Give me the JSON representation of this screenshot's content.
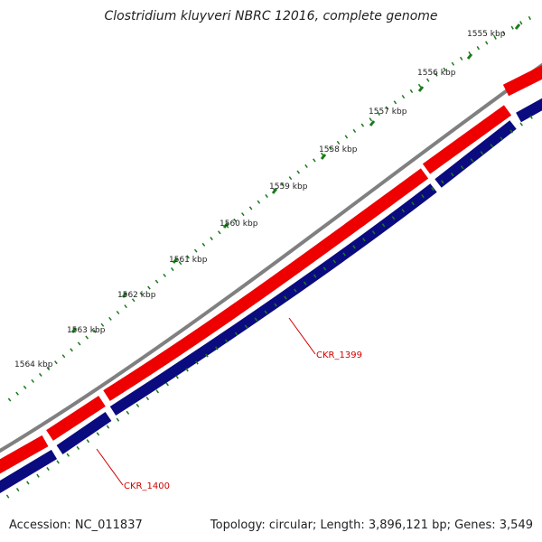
{
  "title": "Clostridium kluyveri NBRC 12016, complete genome",
  "footer": {
    "accession": "Accession: NC_011837",
    "summary": "Topology: circular; Length: 3,896,121 bp; Genes: 3,549"
  },
  "ticks": [
    "1555 kbp",
    "1556 kbp",
    "1557 kbp",
    "1558 kbp",
    "1559 kbp",
    "1560 kbp",
    "1561 kbp",
    "1562 kbp",
    "1563 kbp",
    "1564 kbp"
  ],
  "genes": [
    {
      "label": "CKR_1399"
    },
    {
      "label": "CKR_1400"
    }
  ],
  "colors": {
    "backbone": "#808080",
    "forward_strand": "#ee0000",
    "reverse_strand": "#0b0b80",
    "tick": "#1a7a1a",
    "gene_label": "#d00000"
  }
}
